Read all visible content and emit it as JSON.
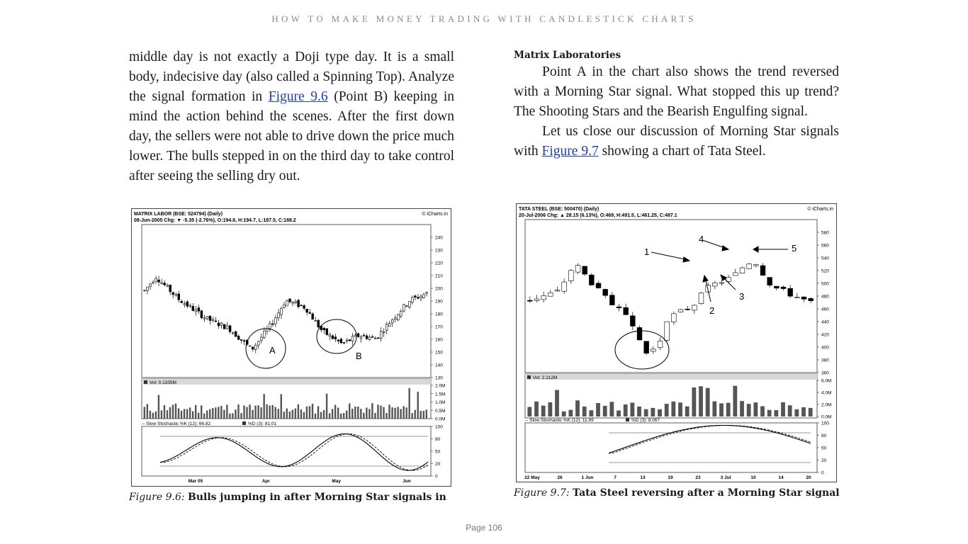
{
  "running_head": "HOW TO MAKE MONEY TRADING WITH CANDLESTICK CHARTS",
  "left": {
    "para1_a": "middle day is not exactly a Doji type day. It is a small body, indecisive day (also called a Spinning Top). Analyze the signal formation in ",
    "para1_link": "Figure 9.6",
    "para1_b": " (Point B) keeping in mind the action behind the scenes. After the first down day, the sellers were not able to drive down the price much lower. The bulls stepped in on the third day to take control after seeing the selling dry out."
  },
  "right": {
    "subhead": "Matrix Laboratories",
    "para1": "Point A in the chart also shows the trend reversed with a Morning Star signal. What stopped this up trend? The Shooting Stars and the Bearish Engulfing signal.",
    "para2_a": "Let us close our discussion of Morning Star signals with ",
    "para2_link": "Figure 9.7",
    "para2_b": " showing a chart of Tata Steel."
  },
  "chart1": {
    "title": "MATRIX LABOR (BSE: 524794) (Daily)",
    "line2": "08-Jun-2005 Chg: ▼ -5.35 (-2.76%), O:194.6, H:194.7, L:187.5, C:188.2",
    "brand": "© iCharts.in",
    "price_ticks": [
      "240",
      "230",
      "220",
      "210",
      "200",
      "190",
      "180",
      "170",
      "160",
      "150",
      "140",
      "130"
    ],
    "vol_label": "Vol: 0.1335M",
    "vol_ticks": [
      "2.0M",
      "1.5M",
      "1.0M",
      "0.5M",
      "0.0M"
    ],
    "stoch_label": "-- Slow Stochastic %K (12): 66.82",
    "stoch_d_label": "%D (3): 81.01",
    "stoch_ticks": [
      "100",
      "80",
      "50",
      "20",
      "0"
    ],
    "x_labels": [
      "Mar 05",
      "Apr",
      "May",
      "Jun"
    ],
    "point_a": "A",
    "point_b": "B"
  },
  "chart2": {
    "title": "TATA STEEL (BSE: 500470) (Daily)",
    "line2": "20-Jul-2006 Chg: ▲ 28.15 (6.13%), O:469, H:491.5, L:461.25, C:487.1",
    "brand": "© iCharts.in",
    "price_ticks": [
      "580",
      "560",
      "540",
      "520",
      "500",
      "480",
      "460",
      "440",
      "420",
      "400",
      "380",
      "360"
    ],
    "vol_label": "Vol: 2.212M",
    "vol_ticks": [
      "6.0M",
      "4.0M",
      "2.0M",
      "0.0M"
    ],
    "stoch_label": "-- Slow Stochastic %K (12): 11.69",
    "stoch_d_label": "%D (3): 8.067",
    "stoch_ticks": [
      "100",
      "80",
      "50",
      "20",
      "0"
    ],
    "x_labels": [
      "22 May",
      "26",
      "1 Jun",
      "7",
      "13",
      "19",
      "23",
      "3 Jul",
      "10",
      "14",
      "20"
    ],
    "annotations": [
      "1",
      "2",
      "3",
      "4",
      "5"
    ]
  },
  "caption1": {
    "prefix": "Figure 9.6: ",
    "text": "Bulls jumping in after Morning Star signals in"
  },
  "caption2": {
    "prefix": "Figure 9.7: ",
    "text": "Tata Steel reversing after a Morning Star signal"
  },
  "page_number": "Page 106"
}
